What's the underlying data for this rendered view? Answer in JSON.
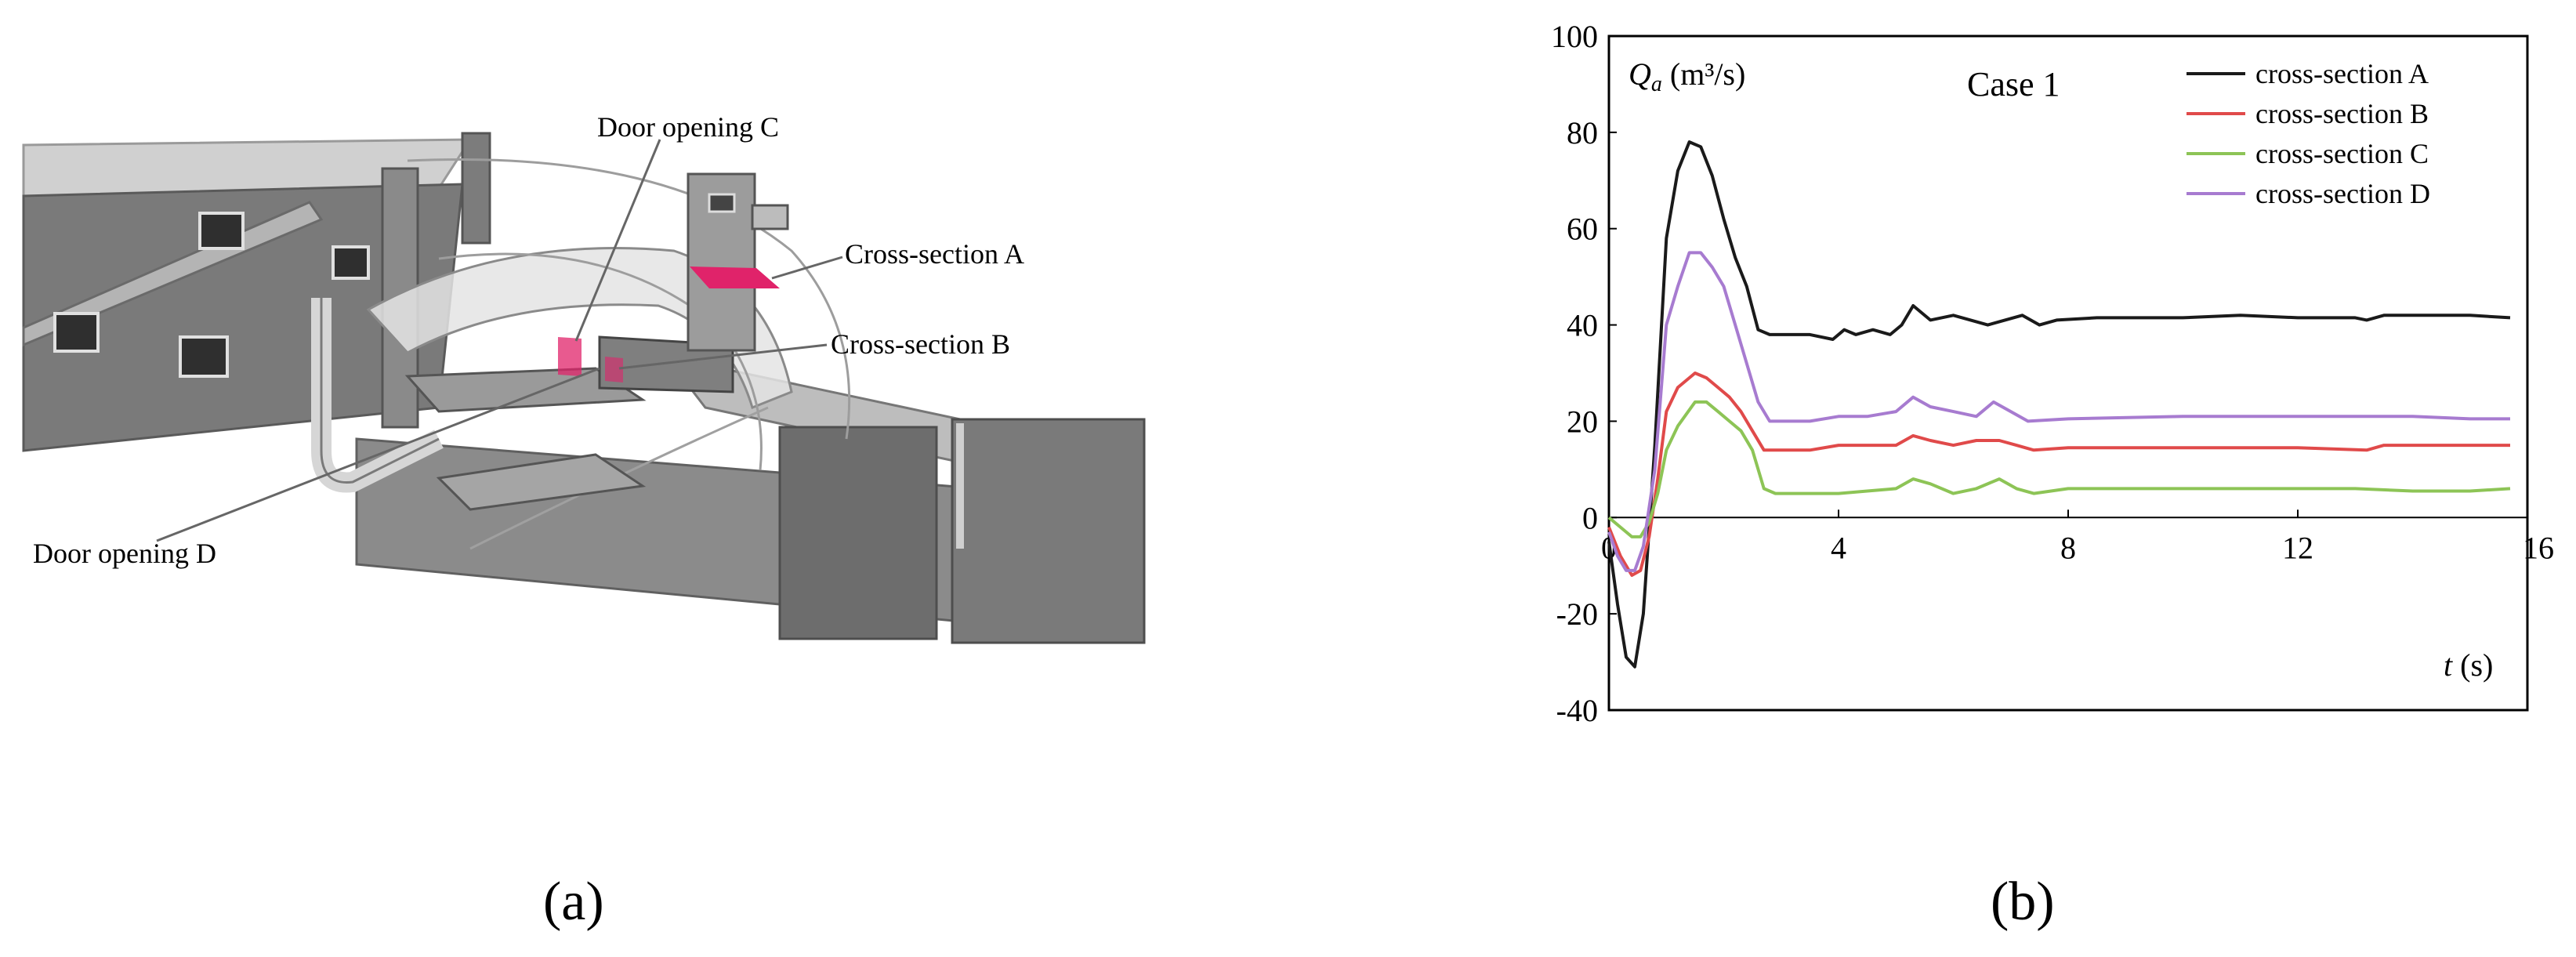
{
  "panel_a": {
    "label": "(a)",
    "annotations": {
      "door_c": "Door opening C",
      "section_a": "Cross-section A",
      "section_b": "Cross-section B",
      "door_d": "Door opening D"
    },
    "colors": {
      "highlight": "#e0236a",
      "model_dark": "#6e6e6e",
      "model_light": "#bdbdbd"
    }
  },
  "panel_b": {
    "label": "(b)"
  },
  "chart_data": {
    "type": "line",
    "title": "Case 1",
    "ylabel": "Q_a (m³/s)",
    "ylabel_parts": {
      "var": "Q",
      "sub": "a",
      "unit": " (m³/s)"
    },
    "xlabel": "t (s)",
    "xlabel_parts": {
      "var": "t",
      "unit": " (s)"
    },
    "xlim": [
      0,
      16
    ],
    "ylim": [
      -40,
      100
    ],
    "xticks": [
      0,
      4,
      8,
      12,
      16
    ],
    "yticks": [
      -40,
      -20,
      0,
      20,
      40,
      60,
      80,
      100
    ],
    "grid": false,
    "legend_position": "top-right",
    "series": [
      {
        "name": "cross-section A",
        "color": "#1a1a1a",
        "x": [
          0,
          0.15,
          0.3,
          0.45,
          0.6,
          0.8,
          1.0,
          1.2,
          1.4,
          1.6,
          1.8,
          2.0,
          2.2,
          2.4,
          2.6,
          2.8,
          3.0,
          3.5,
          3.9,
          4.1,
          4.3,
          4.6,
          4.9,
          5.1,
          5.3,
          5.6,
          6.0,
          6.3,
          6.6,
          6.9,
          7.2,
          7.5,
          7.8,
          8.5,
          10,
          11,
          12,
          13,
          13.2,
          13.5,
          14,
          15,
          15.7
        ],
        "y": [
          -5,
          -18,
          -29,
          -31,
          -20,
          15,
          58,
          72,
          78,
          77,
          71,
          62,
          54,
          48,
          39,
          38,
          38,
          38,
          37,
          39,
          38,
          39,
          38,
          40,
          44,
          41,
          42,
          41,
          40,
          41,
          42,
          40,
          41,
          41.5,
          41.5,
          42,
          41.5,
          41.5,
          41,
          42,
          42,
          42,
          41.5
        ]
      },
      {
        "name": "cross-section B",
        "color": "#e04a4a",
        "x": [
          0,
          0.2,
          0.4,
          0.55,
          0.7,
          0.85,
          1.0,
          1.2,
          1.5,
          1.7,
          1.9,
          2.1,
          2.3,
          2.5,
          2.7,
          3.0,
          3.5,
          4.0,
          4.5,
          5.0,
          5.3,
          5.6,
          6.0,
          6.4,
          6.8,
          7.1,
          7.4,
          8.0,
          10,
          12,
          13.2,
          13.5,
          14,
          15,
          15.7
        ],
        "y": [
          -2,
          -8,
          -12,
          -11,
          -4,
          8,
          22,
          27,
          30,
          29,
          27,
          25,
          22,
          18,
          14,
          14,
          14,
          15,
          15,
          15,
          17,
          16,
          15,
          16,
          16,
          15,
          14,
          14.5,
          14.5,
          14.5,
          14,
          15,
          15,
          15,
          15
        ]
      },
      {
        "name": "cross-section C",
        "color": "#8dc456",
        "x": [
          0,
          0.2,
          0.4,
          0.55,
          0.7,
          0.85,
          1.0,
          1.2,
          1.5,
          1.7,
          1.9,
          2.1,
          2.3,
          2.5,
          2.7,
          2.9,
          3.3,
          4.0,
          4.5,
          5.0,
          5.3,
          5.6,
          6.0,
          6.4,
          6.8,
          7.1,
          7.4,
          8.0,
          10,
          12,
          13,
          14,
          15,
          15.7
        ],
        "y": [
          0,
          -2,
          -4,
          -4,
          -1,
          5,
          14,
          19,
          24,
          24,
          22,
          20,
          18,
          14,
          6,
          5,
          5,
          5,
          5.5,
          6,
          8,
          7,
          5,
          6,
          8,
          6,
          5,
          6,
          6,
          6,
          6,
          5.5,
          5.5,
          6
        ]
      },
      {
        "name": "cross-section D",
        "color": "#a77bd0",
        "x": [
          0,
          0.15,
          0.3,
          0.45,
          0.6,
          0.8,
          1.0,
          1.2,
          1.4,
          1.6,
          1.8,
          2.0,
          2.2,
          2.4,
          2.6,
          2.8,
          3.0,
          3.5,
          4.0,
          4.5,
          5.0,
          5.3,
          5.6,
          6.0,
          6.4,
          6.7,
          7.0,
          7.3,
          8.0,
          10,
          12,
          13,
          14,
          15,
          15.7
        ],
        "y": [
          -3,
          -8,
          -11,
          -11,
          -6,
          10,
          40,
          48,
          55,
          55,
          52,
          48,
          40,
          32,
          24,
          20,
          20,
          20,
          21,
          21,
          22,
          25,
          23,
          22,
          21,
          24,
          22,
          20,
          20.5,
          21,
          21,
          21,
          21,
          20.5,
          20.5
        ]
      }
    ]
  }
}
